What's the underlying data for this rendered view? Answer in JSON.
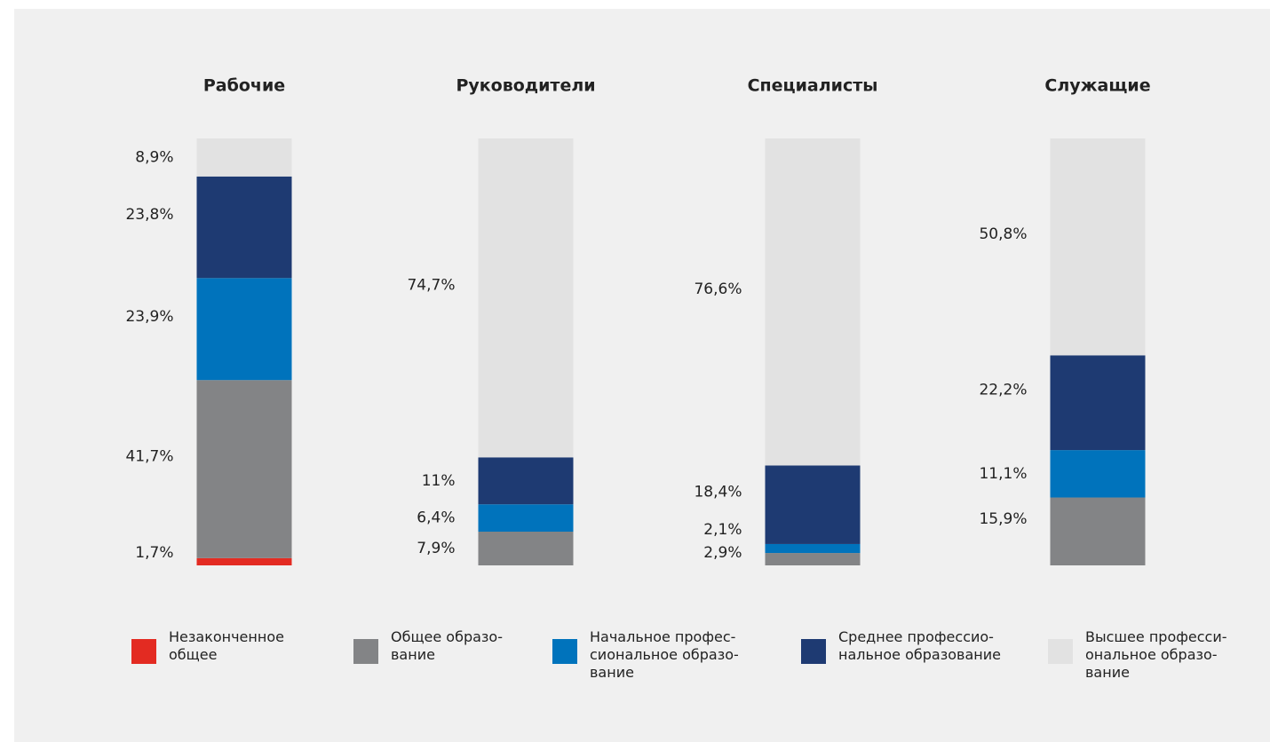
{
  "chart_data": {
    "type": "bar",
    "stacked": true,
    "categories": [
      "Рабочие",
      "Руководители",
      "Специалисты",
      "Служащие"
    ],
    "series": [
      {
        "name": "Незаконченное\nобщее",
        "color": "#e32b22",
        "values": [
          1.7,
          null,
          null,
          null
        ],
        "value_labels": [
          "1,7%",
          null,
          null,
          null
        ]
      },
      {
        "name": "Общее образо-\nвание",
        "color": "#838486",
        "values": [
          41.7,
          7.9,
          2.9,
          15.9
        ],
        "value_labels": [
          "41,7%",
          "7,9%",
          "2,9%",
          "15,9%"
        ]
      },
      {
        "name": "Начальное профес-\nсиональное образо-\nвание",
        "color": "#0073bc",
        "values": [
          23.9,
          6.4,
          2.1,
          11.1
        ],
        "value_labels": [
          "23,9%",
          "6,4%",
          "2,1%",
          "11,1%"
        ]
      },
      {
        "name": "Среднее профессио-\nнальное образование",
        "color": "#1e3a72",
        "values": [
          23.8,
          11,
          18.4,
          22.2
        ],
        "value_labels": [
          "23,8%",
          "11%",
          "18,4%",
          "22,2%"
        ]
      },
      {
        "name": "Высшее професси-\nональное образо-\nвание",
        "color": "#e2e2e2",
        "values": [
          8.9,
          74.7,
          76.6,
          50.8
        ],
        "value_labels": [
          "8,9%",
          "74,7%",
          "76,6%",
          "50,8%"
        ]
      }
    ]
  }
}
